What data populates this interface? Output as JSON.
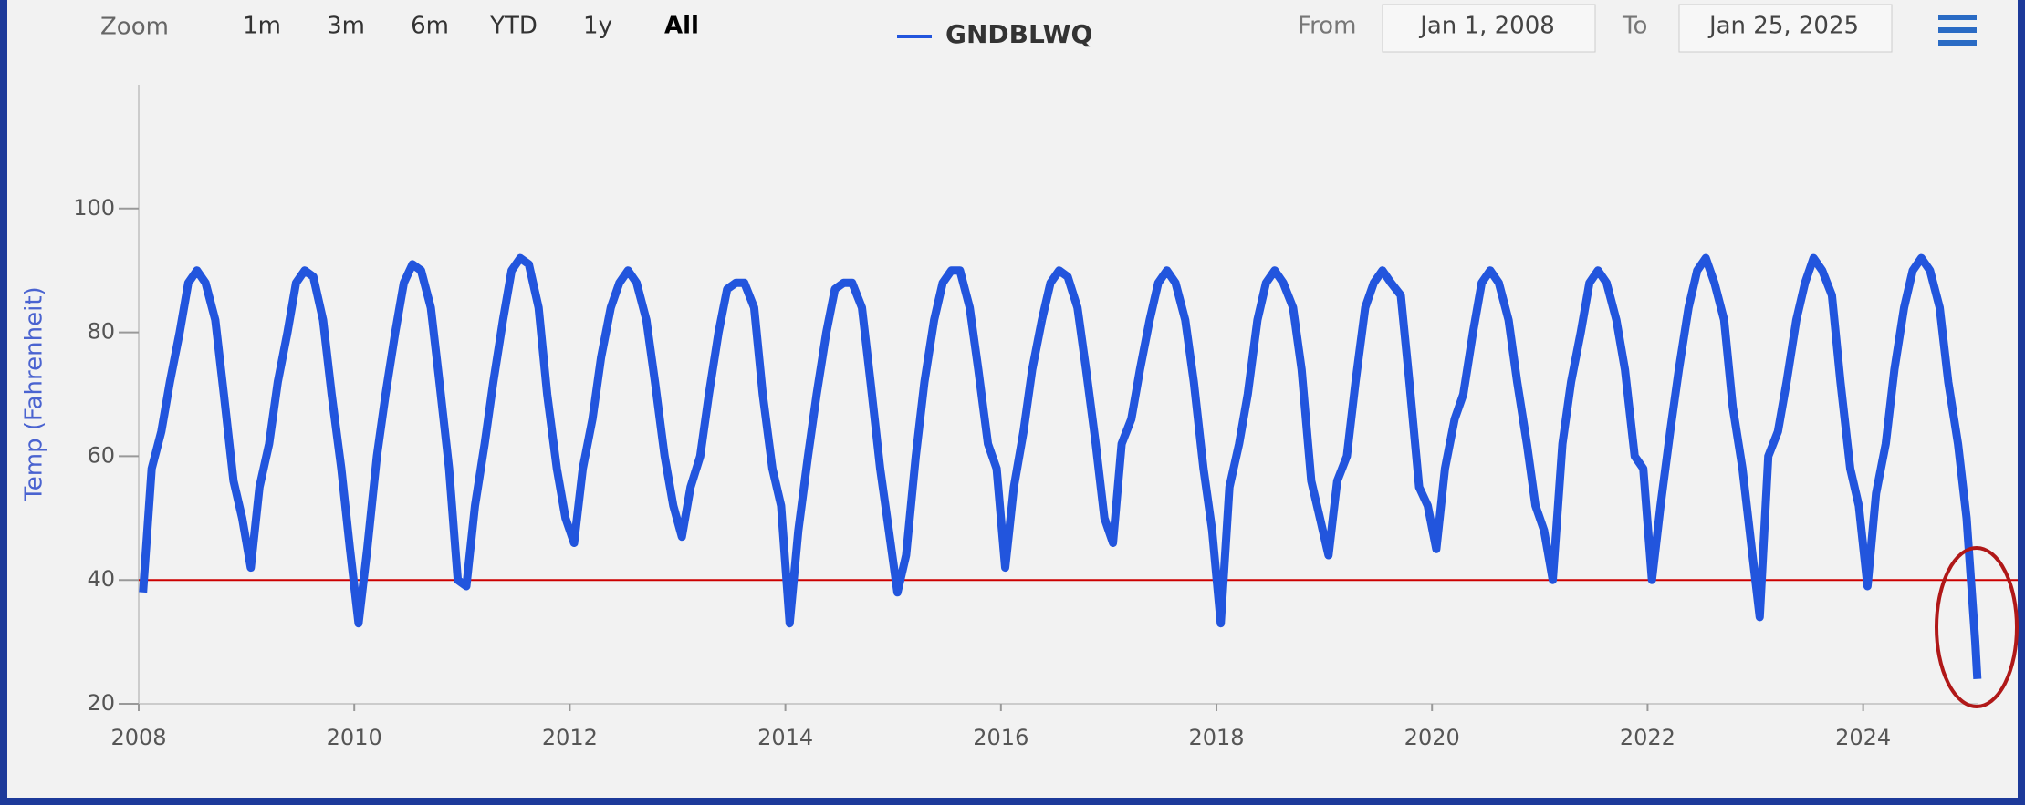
{
  "zoom": {
    "label": "Zoom",
    "buttons": [
      "1m",
      "3m",
      "6m",
      "YTD",
      "1y",
      "All"
    ]
  },
  "range": {
    "from_label": "From",
    "from": "Jan 1, 2008",
    "to_label": "To",
    "to": "Jan 25, 2025"
  },
  "chart_data": {
    "type": "line",
    "y_label": "Temp (Fahrenheit)",
    "xlim": [
      2008,
      2025.07
    ],
    "xticks": [
      2008,
      2010,
      2012,
      2014,
      2016,
      2018,
      2020,
      2022,
      2024
    ],
    "ylim": [
      20,
      120
    ],
    "yticks": [
      20,
      40,
      60,
      80,
      100
    ],
    "plot_lines": [
      {
        "value": 40,
        "color": "#cc0000"
      }
    ],
    "x": [
      2008.04,
      2008.12,
      2008.21,
      2008.29,
      2008.38,
      2008.46,
      2008.54,
      2008.62,
      2008.71,
      2008.79,
      2008.88,
      2008.96,
      2009.04,
      2009.12,
      2009.21,
      2009.29,
      2009.38,
      2009.46,
      2009.54,
      2009.62,
      2009.71,
      2009.79,
      2009.88,
      2009.96,
      2010.04,
      2010.12,
      2010.21,
      2010.29,
      2010.38,
      2010.46,
      2010.54,
      2010.62,
      2010.71,
      2010.79,
      2010.88,
      2010.96,
      2011.04,
      2011.12,
      2011.21,
      2011.29,
      2011.38,
      2011.46,
      2011.54,
      2011.62,
      2011.71,
      2011.79,
      2011.88,
      2011.96,
      2012.04,
      2012.12,
      2012.21,
      2012.29,
      2012.38,
      2012.46,
      2012.54,
      2012.62,
      2012.71,
      2012.79,
      2012.88,
      2012.96,
      2013.04,
      2013.12,
      2013.21,
      2013.29,
      2013.38,
      2013.46,
      2013.54,
      2013.62,
      2013.71,
      2013.79,
      2013.88,
      2013.96,
      2014.04,
      2014.12,
      2014.21,
      2014.29,
      2014.38,
      2014.46,
      2014.54,
      2014.62,
      2014.71,
      2014.79,
      2014.88,
      2014.96,
      2015.04,
      2015.12,
      2015.21,
      2015.29,
      2015.38,
      2015.46,
      2015.54,
      2015.62,
      2015.71,
      2015.79,
      2015.88,
      2015.96,
      2016.04,
      2016.12,
      2016.21,
      2016.29,
      2016.38,
      2016.46,
      2016.54,
      2016.62,
      2016.71,
      2016.79,
      2016.88,
      2016.96,
      2017.04,
      2017.12,
      2017.21,
      2017.29,
      2017.38,
      2017.46,
      2017.54,
      2017.62,
      2017.71,
      2017.79,
      2017.88,
      2017.96,
      2018.04,
      2018.12,
      2018.21,
      2018.29,
      2018.38,
      2018.46,
      2018.54,
      2018.62,
      2018.71,
      2018.79,
      2018.88,
      2018.96,
      2019.04,
      2019.12,
      2019.21,
      2019.29,
      2019.38,
      2019.46,
      2019.54,
      2019.62,
      2019.71,
      2019.79,
      2019.88,
      2019.96,
      2020.04,
      2020.12,
      2020.21,
      2020.29,
      2020.38,
      2020.46,
      2020.54,
      2020.62,
      2020.71,
      2020.79,
      2020.88,
      2020.96,
      2021.04,
      2021.12,
      2021.21,
      2021.29,
      2021.38,
      2021.46,
      2021.54,
      2021.62,
      2021.71,
      2021.79,
      2021.88,
      2021.96,
      2022.04,
      2022.12,
      2022.21,
      2022.29,
      2022.38,
      2022.46,
      2022.54,
      2022.62,
      2022.71,
      2022.79,
      2022.88,
      2022.96,
      2023.04,
      2023.12,
      2023.21,
      2023.29,
      2023.38,
      2023.46,
      2023.54,
      2023.62,
      2023.71,
      2023.79,
      2023.88,
      2023.96,
      2024.04,
      2024.12,
      2024.21,
      2024.29,
      2024.38,
      2024.46,
      2024.54,
      2024.62,
      2024.71,
      2024.79,
      2024.88,
      2024.96,
      2025.04,
      2025.06
    ],
    "series": [
      {
        "name": "GNDBLWQ",
        "color": "#2255dd",
        "values": [
          38,
          58,
          64,
          72,
          80,
          88,
          90,
          88,
          82,
          70,
          56,
          50,
          42,
          55,
          62,
          72,
          80,
          88,
          90,
          89,
          82,
          70,
          58,
          45,
          33,
          45,
          60,
          70,
          80,
          88,
          91,
          90,
          84,
          72,
          58,
          40,
          39,
          52,
          62,
          72,
          82,
          90,
          92,
          91,
          84,
          70,
          58,
          50,
          46,
          58,
          66,
          76,
          84,
          88,
          90,
          88,
          82,
          72,
          60,
          52,
          47,
          55,
          60,
          70,
          80,
          87,
          88,
          88,
          84,
          70,
          58,
          52,
          33,
          48,
          60,
          70,
          80,
          87,
          88,
          88,
          84,
          72,
          58,
          48,
          38,
          44,
          60,
          72,
          82,
          88,
          90,
          90,
          84,
          74,
          62,
          58,
          42,
          55,
          64,
          74,
          82,
          88,
          90,
          89,
          84,
          74,
          62,
          50,
          46,
          62,
          66,
          74,
          82,
          88,
          90,
          88,
          82,
          72,
          58,
          48,
          33,
          55,
          62,
          70,
          82,
          88,
          90,
          88,
          84,
          74,
          56,
          50,
          44,
          56,
          60,
          72,
          84,
          88,
          90,
          88,
          86,
          72,
          55,
          52,
          45,
          58,
          66,
          70,
          80,
          88,
          90,
          88,
          82,
          72,
          62,
          52,
          48,
          40,
          62,
          72,
          80,
          88,
          90,
          88,
          82,
          74,
          60,
          58,
          40,
          52,
          64,
          74,
          84,
          90,
          92,
          88,
          82,
          68,
          58,
          46,
          34,
          60,
          64,
          72,
          82,
          88,
          92,
          90,
          86,
          72,
          58,
          52,
          39,
          54,
          62,
          74,
          84,
          90,
          92,
          90,
          84,
          72,
          62,
          50,
          30,
          24
        ]
      }
    ]
  }
}
